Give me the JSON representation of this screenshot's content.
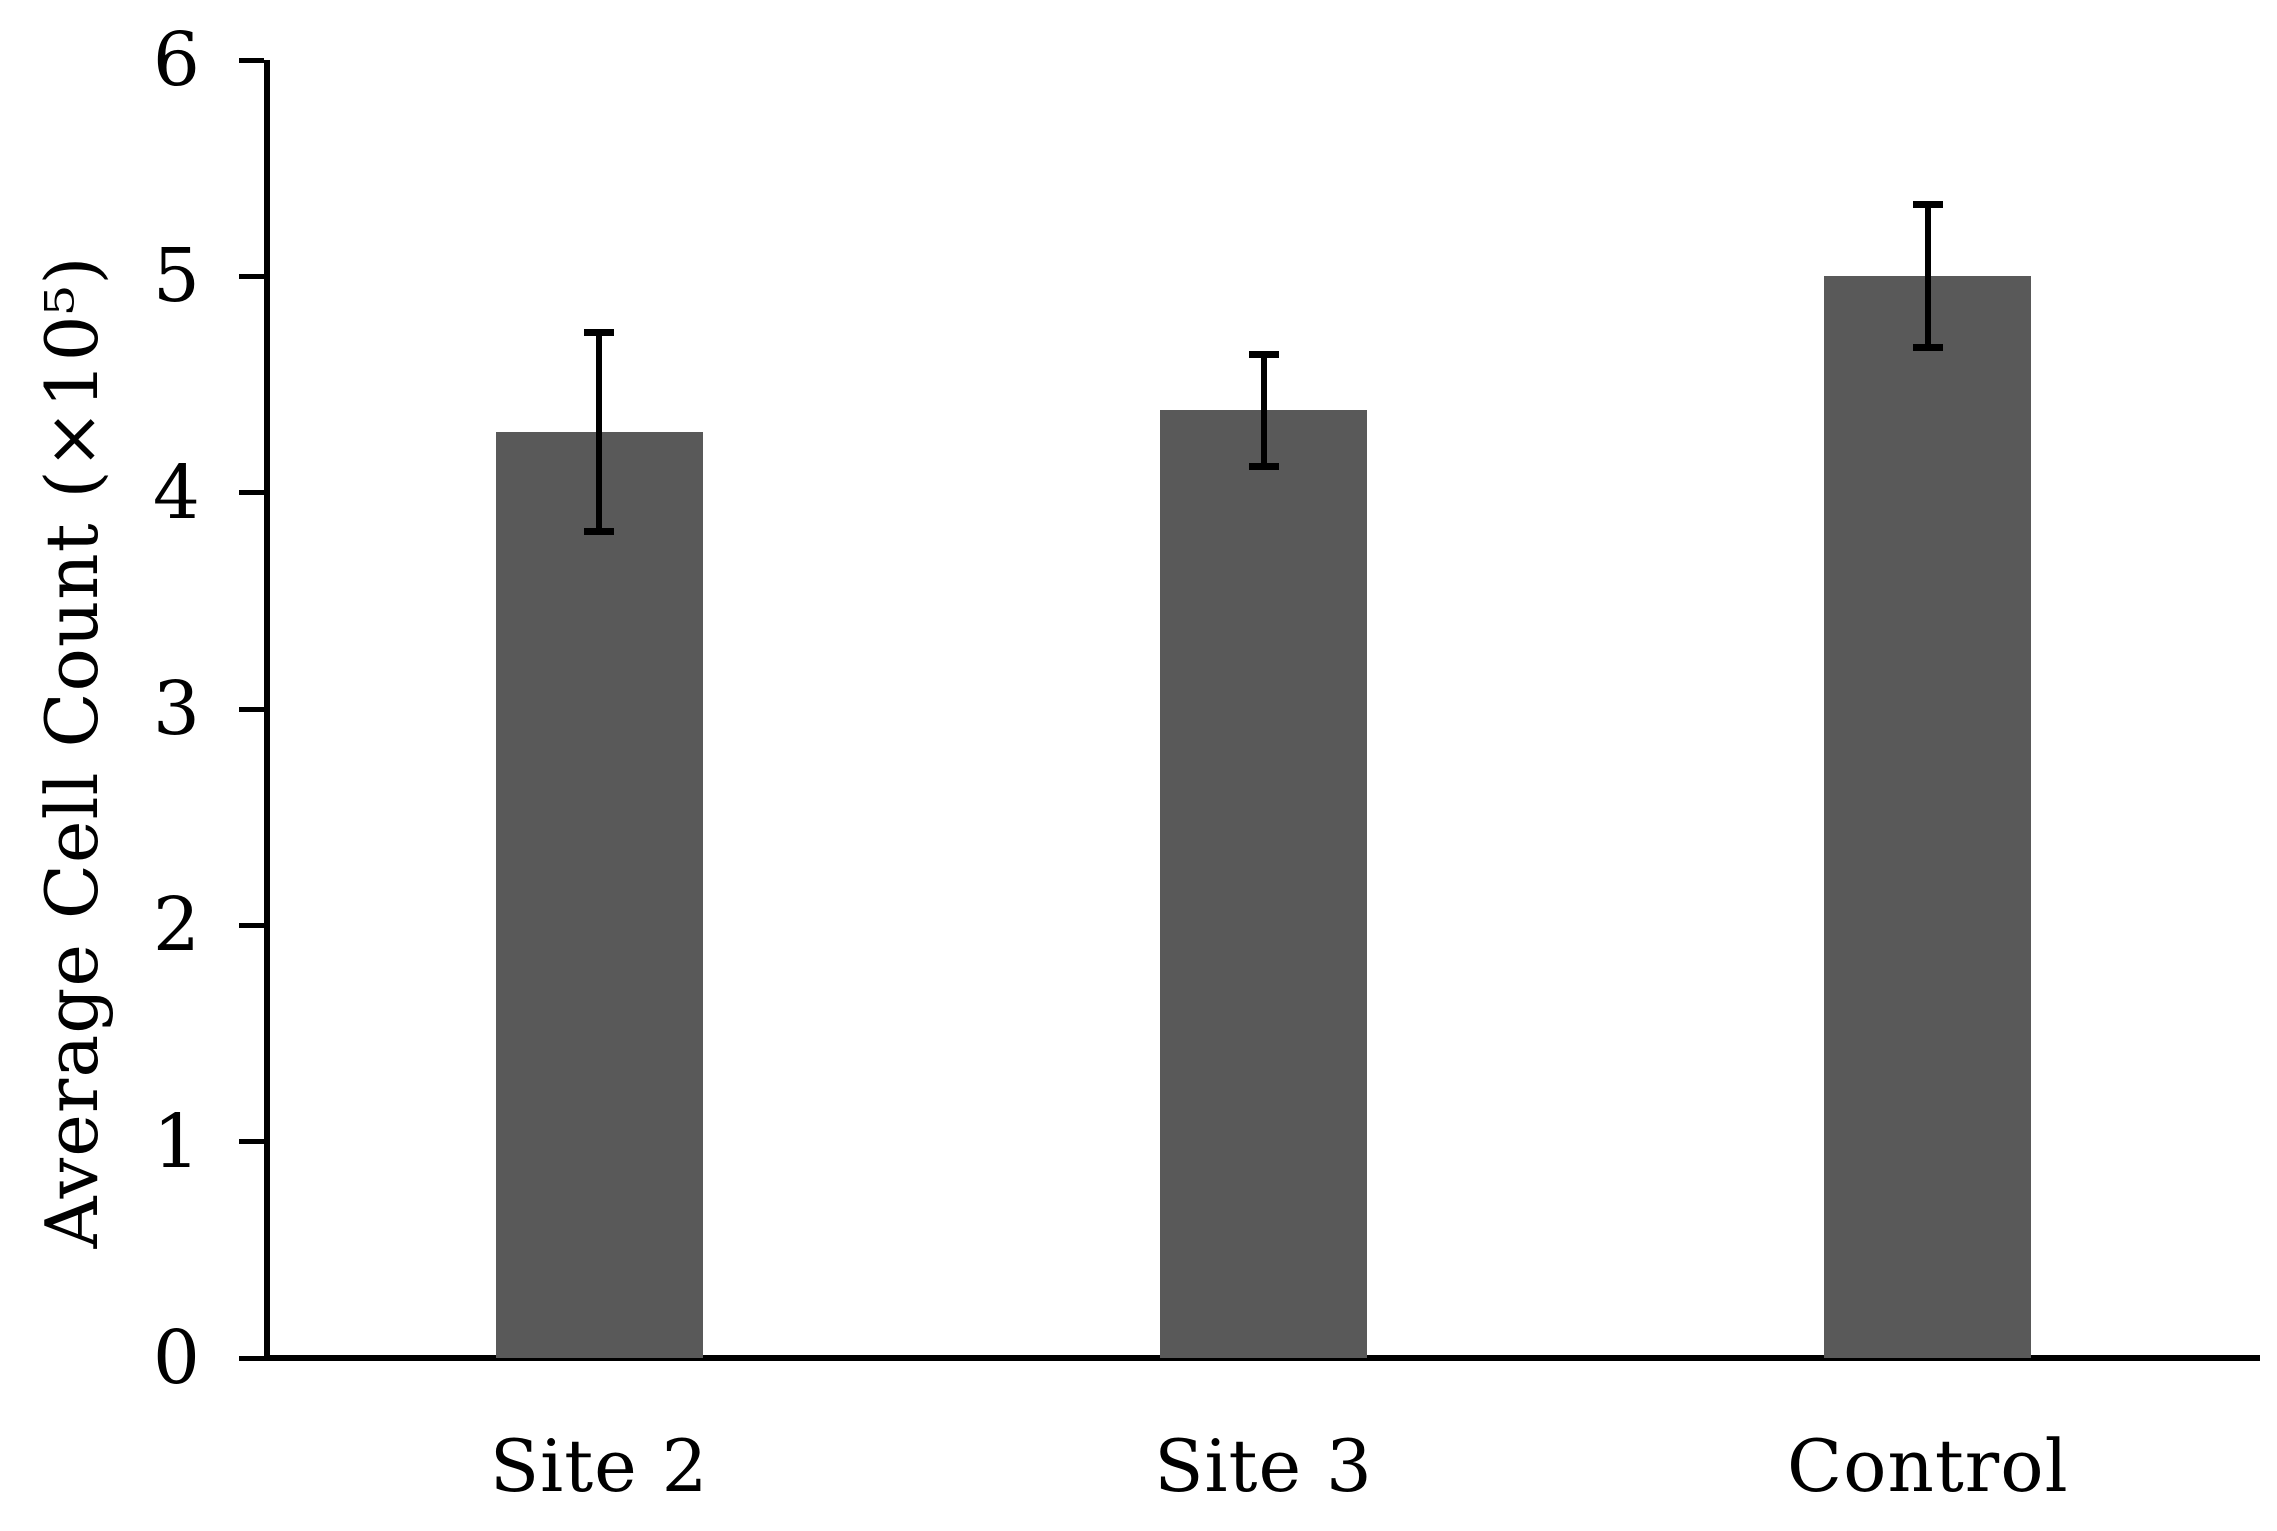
{
  "chart_data": {
    "type": "bar",
    "title": "",
    "categories": [
      "Site 2",
      "Site 3",
      "Control"
    ],
    "values": [
      4.28,
      4.38,
      5.0
    ],
    "errors": [
      0.46,
      0.26,
      0.33
    ],
    "xlabel": "",
    "ylabel": "Average Cell Count (×10⁵)",
    "ylim": [
      0,
      6
    ],
    "yticks": [
      0,
      1,
      2,
      3,
      4,
      5,
      6
    ],
    "grid": false,
    "legend": false,
    "bar_color": "#595959",
    "axis_color": "#000000",
    "error_color": "#000000",
    "background": "#ffffff"
  }
}
